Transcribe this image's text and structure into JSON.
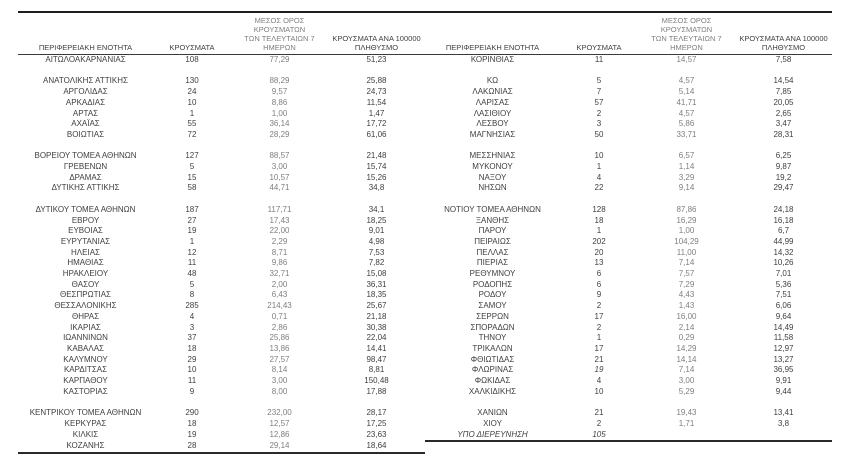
{
  "report": {
    "columns": [
      {
        "key": "region",
        "label": "ΠΕΡΙΦΕΡΕΙΑΚΗ ΕΝΟΤΗΤΑ"
      },
      {
        "key": "cases",
        "label": "ΚΡΟΥΣΜΑΤΑ"
      },
      {
        "key": "avg7",
        "label": "ΜΕΣΟΣ ΟΡΟΣ ΚΡΟΥΣΜΑΤΩΝ\nΤΩΝ ΤΕΛΕΥΤΑΙΩΝ 7\nΗΜΕΡΩΝ"
      },
      {
        "key": "per100k",
        "label": "ΚΡΟΥΣΜΑΤΑ ΑΝΑ 100000\nΠΛΗΘΥΣΜΟ"
      }
    ],
    "left_rows": [
      [
        "ΑΙΤΩΛΟΑΚΑΡΝΑΝΙΑΣ",
        "108",
        "77,29",
        "51,23"
      ],
      [
        "ΑΝΑΤΟΛΙΚΗΣ ΑΤΤΙΚΗΣ",
        "130",
        "88,29",
        "25,88"
      ],
      [
        "ΑΡΓΟΛΙΔΑΣ",
        "24",
        "9,57",
        "24,73"
      ],
      [
        "ΑΡΚΑΔΙΑΣ",
        "10",
        "8,86",
        "11,54"
      ],
      [
        "ΑΡΤΑΣ",
        "1",
        "1,00",
        "1,47"
      ],
      [
        "ΑΧΑΪΑΣ",
        "55",
        "36,14",
        "17,72"
      ],
      [
        "ΒΟΙΩΤΙΑΣ",
        "72",
        "28,29",
        "61,06"
      ],
      [
        "ΒΟΡΕΙΟΥ ΤΟΜΕΑ ΑΘΗΝΩΝ",
        "127",
        "88,57",
        "21,48"
      ],
      [
        "ΓΡΕΒΕΝΩΝ",
        "5",
        "3,00",
        "15,74"
      ],
      [
        "ΔΡΑΜΑΣ",
        "15",
        "10,57",
        "15,26"
      ],
      [
        "ΔΥΤΙΚΗΣ ΑΤΤΙΚΗΣ",
        "58",
        "44,71",
        "34,8"
      ],
      [
        "ΔΥΤΙΚΟΥ ΤΟΜΕΑ ΑΘΗΝΩΝ",
        "187",
        "117,71",
        "34,1"
      ],
      [
        "ΕΒΡΟΥ",
        "27",
        "17,43",
        "18,25"
      ],
      [
        "ΕΥΒΟΙΑΣ",
        "19",
        "22,00",
        "9,01"
      ],
      [
        "ΕΥΡΥΤΑΝΙΑΣ",
        "1",
        "2,29",
        "4,98"
      ],
      [
        "ΗΛΕΙΑΣ",
        "12",
        "8,71",
        "7,53"
      ],
      [
        "ΗΜΑΘΙΑΣ",
        "11",
        "9,86",
        "7,82"
      ],
      [
        "ΗΡΑΚΛΕΙΟΥ",
        "48",
        "32,71",
        "15,08"
      ],
      [
        "ΘΑΣΟΥ",
        "5",
        "2,00",
        "36,31"
      ],
      [
        "ΘΕΣΠΡΩΤΙΑΣ",
        "8",
        "6,43",
        "18,35"
      ],
      [
        "ΘΕΣΣΑΛΟΝΙΚΗΣ",
        "285",
        "214,43",
        "25,67"
      ],
      [
        "ΘΗΡΑΣ",
        "4",
        "0,71",
        "21,18"
      ],
      [
        "ΙΚΑΡΙΑΣ",
        "3",
        "2,86",
        "30,38"
      ],
      [
        "ΙΩΑΝΝΙΝΩΝ",
        "37",
        "25,86",
        "22,04"
      ],
      [
        "ΚΑΒΑΛΑΣ",
        "18",
        "13,86",
        "14,41"
      ],
      [
        "ΚΑΛΥΜΝΟΥ",
        "29",
        "27,57",
        "98,47"
      ],
      [
        "ΚΑΡΔΙΤΣΑΣ",
        "10",
        "8,14",
        "8,81"
      ],
      [
        "ΚΑΡΠΑΘΟΥ",
        "11",
        "3,00",
        "150,48"
      ],
      [
        "ΚΑΣΤΟΡΙΑΣ",
        "9",
        "8,00",
        "17,88"
      ],
      [
        "ΚΕΝΤΡΙΚΟΥ ΤΟΜΕΑ ΑΘΗΝΩΝ",
        "290",
        "232,00",
        "28,17"
      ],
      [
        "ΚΕΡΚΥΡΑΣ",
        "18",
        "12,57",
        "17,25"
      ],
      [
        "ΚΙΛΚΙΣ",
        "19",
        "12,86",
        "23,63"
      ],
      [
        "ΚΟΖΑΝΗΣ",
        "28",
        "29,14",
        "18,64"
      ]
    ],
    "right_rows": [
      [
        "ΚΟΡΙΝΘΙΑΣ",
        "11",
        "14,57",
        "7,58"
      ],
      [
        "ΚΩ",
        "5",
        "4,57",
        "14,54"
      ],
      [
        "ΛΑΚΩΝΙΑΣ",
        "7",
        "5,14",
        "7,85"
      ],
      [
        "ΛΑΡΙΣΑΣ",
        "57",
        "41,71",
        "20,05"
      ],
      [
        "ΛΑΣΙΘΙΟΥ",
        "2",
        "4,57",
        "2,65"
      ],
      [
        "ΛΕΣΒΟΥ",
        "3",
        "5,86",
        "3,47"
      ],
      [
        "ΜΑΓΝΗΣΙΑΣ",
        "50",
        "33,71",
        "28,31"
      ],
      [
        "ΜΕΣΣΗΝΙΑΣ",
        "10",
        "6,57",
        "6,25"
      ],
      [
        "ΜΥΚΟΝΟΥ",
        "1",
        "1,14",
        "9,87"
      ],
      [
        "ΝΑΞΟΥ",
        "4",
        "3,29",
        "19,2"
      ],
      [
        "ΝΗΣΩΝ",
        "22",
        "9,14",
        "29,47"
      ],
      [
        "ΝΟΤΙΟΥ ΤΟΜΕΑ ΑΘΗΝΩΝ",
        "128",
        "87,86",
        "24,18"
      ],
      [
        "ΞΑΝΘΗΣ",
        "18",
        "16,29",
        "16,18"
      ],
      [
        "ΠΑΡΟΥ",
        "1",
        "1,00",
        "6,7"
      ],
      [
        "ΠΕΙΡΑΙΩΣ",
        "202",
        "104,29",
        "44,99"
      ],
      [
        "ΠΕΛΛΑΣ",
        "20",
        "11,00",
        "14,32"
      ],
      [
        "ΠΙΕΡΙΑΣ",
        "13",
        "7,14",
        "10,26"
      ],
      [
        "ΡΕΘΥΜΝΟΥ",
        "6",
        "7,57",
        "7,01"
      ],
      [
        "ΡΟΔΟΠΗΣ",
        "6",
        "7,29",
        "5,36"
      ],
      [
        "ΡΟΔΟΥ",
        "9",
        "4,43",
        "7,51"
      ],
      [
        "ΣΑΜΟΥ",
        "2",
        "1,43",
        "6,06"
      ],
      [
        "ΣΕΡΡΩΝ",
        "17",
        "16,00",
        "9,64"
      ],
      [
        "ΣΠΟΡΑΔΩΝ",
        "2",
        "2,14",
        "14,49"
      ],
      [
        "ΤΗΝΟΥ",
        "1",
        "0,29",
        "11,58"
      ],
      [
        "ΤΡΙΚΑΛΩΝ",
        "17",
        "14,29",
        "12,97"
      ],
      [
        "ΦΘΙΩΤΙΔΑΣ",
        "21",
        "14,14",
        "13,27"
      ],
      [
        "ΦΛΩΡΙΝΑΣ",
        "19",
        "7,14",
        "36,95"
      ],
      [
        "ΦΩΚΙΔΑΣ",
        "4",
        "3,00",
        "9,91"
      ],
      [
        "ΧΑΛΚΙΔΙΚΗΣ",
        "10",
        "5,29",
        "9,44"
      ],
      [
        "ΧΑΝΙΩΝ",
        "21",
        "19,43",
        "13,41"
      ],
      [
        "ΧΙΟΥ",
        "2",
        "1,71",
        "3,8"
      ],
      [
        "ΥΠΟ ΔΙΕΡΕΥΝΗΣΗ",
        "105",
        "",
        ""
      ]
    ],
    "spacer_after": [
      0,
      6,
      10,
      28
    ],
    "right_last_data_row": 31,
    "italic": {
      "right_cells": [
        [
          26,
          1
        ]
      ],
      "right_rows": [
        31
      ]
    },
    "colors": {
      "text": "#3f3f3f",
      "muted": "#7f7f7f",
      "rule": "#1f1f1f"
    }
  }
}
